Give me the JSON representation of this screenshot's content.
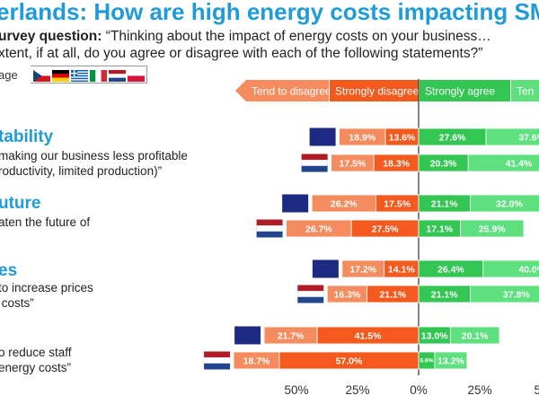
{
  "header": {
    "title": "erlands: How are high energy costs impacting SM",
    "subtitle_bold": "urvey question:",
    "subtitle_rest": " “Thinking about the impact of energy costs on your business…",
    "subtitle_line2": "xtent, if at all, do you agree or disagree with each of the following statements?”",
    "average_label": "age"
  },
  "flags": [
    "czech-flag",
    "germany-flag",
    "greece-flag",
    "italy-flag",
    "netherlands-flag",
    "poland-flag"
  ],
  "colors": {
    "navy": "#1c2a82",
    "light_orange": "#f58c5f",
    "dark_orange": "#f45a1e",
    "dark_green": "#33c653",
    "light_green": "#5ee07f",
    "title_blue": "#1f9bd7",
    "arrow_orange": "#f58c5f"
  },
  "sections": [
    {
      "title": "tability",
      "statement": "making our business less profitable\nroductivity, limited production)”"
    },
    {
      "title": "uture",
      "statement": "aten the future of"
    },
    {
      "title": "es",
      "statement": "to increase prices\n costs”"
    },
    {
      "title": "",
      "statement": "o reduce staff\nenergy costs”"
    }
  ],
  "chart_data": {
    "type": "bar",
    "orientation": "horizontal-diverging",
    "legend": [
      "Tend to disagree",
      "Strongly disagree",
      "Strongly agree",
      "Tend to agree"
    ],
    "legend_visible": [
      "Tend to disagree",
      "Strongly disagree",
      "Strongly agree",
      "Ten"
    ],
    "x_ticks": [
      "50%",
      "25%",
      "0%",
      "25%",
      "50"
    ],
    "x_tick_values": [
      -50,
      -25,
      0,
      25,
      50
    ],
    "rows": [
      {
        "group": "Average",
        "tend_disagree": 18.9,
        "strongly_disagree": 13.6,
        "strongly_agree": 27.6,
        "tend_agree": 37.6
      },
      {
        "group": "Netherlands",
        "tend_disagree": 17.5,
        "strongly_disagree": 18.3,
        "strongly_agree": 20.3,
        "tend_agree": 41.4
      },
      {
        "group": "Average",
        "tend_disagree": 26.2,
        "strongly_disagree": 17.5,
        "strongly_agree": 21.1,
        "tend_agree": 32.0
      },
      {
        "group": "Netherlands",
        "tend_disagree": 26.7,
        "strongly_disagree": 27.5,
        "strongly_agree": 17.1,
        "tend_agree": 25.9
      },
      {
        "group": "Average",
        "tend_disagree": 17.2,
        "strongly_disagree": 14.1,
        "strongly_agree": 26.4,
        "tend_agree": 40.0
      },
      {
        "group": "Netherlands",
        "tend_disagree": 16.3,
        "strongly_disagree": 21.1,
        "strongly_agree": 21.1,
        "tend_agree": 37.8
      },
      {
        "group": "Average",
        "tend_disagree": 21.7,
        "strongly_disagree": 41.5,
        "strongly_agree": 13.0,
        "tend_agree": 20.1
      },
      {
        "group": "Netherlands",
        "tend_disagree": 18.7,
        "strongly_disagree": 57.0,
        "strongly_agree": 6.6,
        "tend_agree": 13.2
      }
    ]
  }
}
